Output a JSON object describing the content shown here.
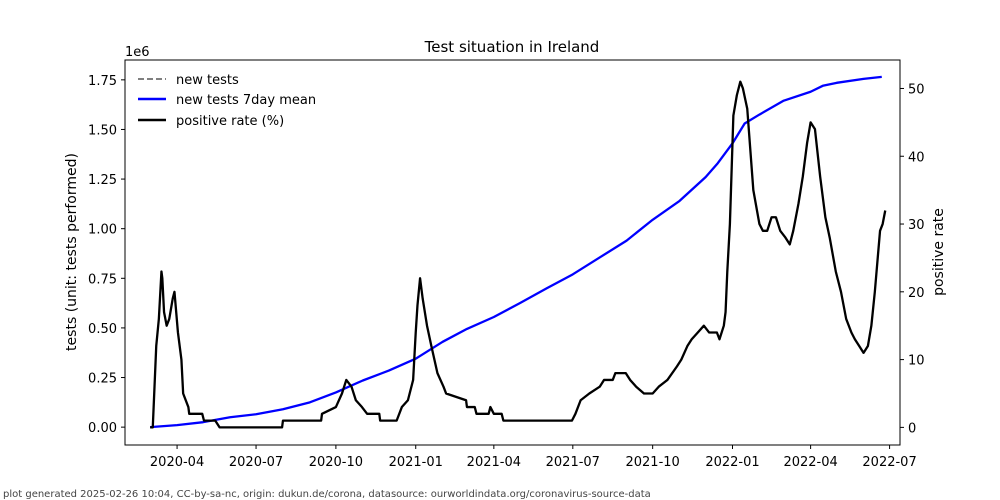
{
  "chart_data": {
    "type": "line",
    "title": "Test situation in Ireland",
    "y_offset_label": "1e6",
    "ylabel_left": "tests (unit: tests performed)",
    "ylabel_right": "positive rate",
    "x_range": [
      "2020-02-01",
      "2022-07-13"
    ],
    "x_ticks": [
      {
        "date": "2020-04-01",
        "label": "2020-04"
      },
      {
        "date": "2020-07-01",
        "label": "2020-07"
      },
      {
        "date": "2020-10-01",
        "label": "2020-10"
      },
      {
        "date": "2021-01-01",
        "label": "2021-01"
      },
      {
        "date": "2021-04-01",
        "label": "2021-04"
      },
      {
        "date": "2021-07-01",
        "label": "2021-07"
      },
      {
        "date": "2021-10-01",
        "label": "2021-10"
      },
      {
        "date": "2022-01-01",
        "label": "2022-01"
      },
      {
        "date": "2022-04-01",
        "label": "2022-04"
      },
      {
        "date": "2022-07-01",
        "label": "2022-07"
      }
    ],
    "y_left": {
      "range": [
        -0.09,
        1.85
      ],
      "ticks": [
        0,
        0.25,
        0.5,
        0.75,
        1.0,
        1.25,
        1.5,
        1.75
      ],
      "tick_labels": [
        "0.00",
        "0.25",
        "0.50",
        "0.75",
        "1.00",
        "1.25",
        "1.50",
        "1.75"
      ]
    },
    "y_right": {
      "range": [
        -2.6,
        54.2
      ],
      "ticks": [
        0,
        10,
        20,
        30,
        40,
        50
      ],
      "tick_labels": [
        "0",
        "10",
        "20",
        "30",
        "40",
        "50"
      ]
    },
    "legend": [
      {
        "label": "new tests",
        "color": "#808080",
        "style": "dashed"
      },
      {
        "label": "new tests 7day mean",
        "color": "#0000ff",
        "style": "solid"
      },
      {
        "label": "positive rate (%)",
        "color": "#000000",
        "style": "solid"
      }
    ],
    "series": [
      {
        "name": "new tests 7day mean",
        "axis": "left",
        "color": "#0000ff",
        "points": [
          [
            "2020-03-01",
            0.0
          ],
          [
            "2020-04-01",
            0.01
          ],
          [
            "2020-05-01",
            0.025
          ],
          [
            "2020-06-01",
            0.05
          ],
          [
            "2020-07-01",
            0.065
          ],
          [
            "2020-08-01",
            0.09
          ],
          [
            "2020-09-01",
            0.125
          ],
          [
            "2020-10-01",
            0.175
          ],
          [
            "2020-11-01",
            0.235
          ],
          [
            "2020-12-01",
            0.285
          ],
          [
            "2021-01-01",
            0.345
          ],
          [
            "2021-02-01",
            0.43
          ],
          [
            "2021-03-01",
            0.495
          ],
          [
            "2021-04-01",
            0.555
          ],
          [
            "2021-05-01",
            0.625
          ],
          [
            "2021-06-01",
            0.7
          ],
          [
            "2021-07-01",
            0.77
          ],
          [
            "2021-08-01",
            0.855
          ],
          [
            "2021-09-01",
            0.94
          ],
          [
            "2021-10-01",
            1.045
          ],
          [
            "2021-11-01",
            1.14
          ],
          [
            "2021-12-01",
            1.26
          ],
          [
            "2021-12-15",
            1.33
          ],
          [
            "2022-01-01",
            1.43
          ],
          [
            "2022-01-15",
            1.53
          ],
          [
            "2022-02-01",
            1.575
          ],
          [
            "2022-03-01",
            1.645
          ],
          [
            "2022-04-01",
            1.69
          ],
          [
            "2022-04-15",
            1.72
          ],
          [
            "2022-05-01",
            1.735
          ],
          [
            "2022-06-01",
            1.755
          ],
          [
            "2022-06-22",
            1.765
          ]
        ]
      },
      {
        "name": "positive rate (%)",
        "axis": "right",
        "color": "#000000",
        "points": [
          [
            "2020-03-01",
            0
          ],
          [
            "2020-03-04",
            0
          ],
          [
            "2020-03-06",
            6
          ],
          [
            "2020-03-08",
            12
          ],
          [
            "2020-03-11",
            16
          ],
          [
            "2020-03-14",
            23
          ],
          [
            "2020-03-15",
            22
          ],
          [
            "2020-03-17",
            17
          ],
          [
            "2020-03-20",
            15
          ],
          [
            "2020-03-23",
            16
          ],
          [
            "2020-03-27",
            19
          ],
          [
            "2020-03-29",
            20
          ],
          [
            "2020-04-02",
            14
          ],
          [
            "2020-04-06",
            10
          ],
          [
            "2020-04-08",
            5
          ],
          [
            "2020-04-14",
            3
          ],
          [
            "2020-04-15",
            2
          ],
          [
            "2020-04-30",
            2
          ],
          [
            "2020-05-02",
            1
          ],
          [
            "2020-05-15",
            1
          ],
          [
            "2020-05-20",
            0
          ],
          [
            "2020-07-31",
            0
          ],
          [
            "2020-08-01",
            1
          ],
          [
            "2020-09-14",
            1
          ],
          [
            "2020-09-15",
            2
          ],
          [
            "2020-10-01",
            3
          ],
          [
            "2020-10-08",
            5
          ],
          [
            "2020-10-13",
            7
          ],
          [
            "2020-10-19",
            6
          ],
          [
            "2020-10-24",
            4
          ],
          [
            "2020-10-31",
            3
          ],
          [
            "2020-11-06",
            2
          ],
          [
            "2020-11-20",
            2
          ],
          [
            "2020-11-21",
            1
          ],
          [
            "2020-12-10",
            1
          ],
          [
            "2020-12-16",
            3
          ],
          [
            "2020-12-23",
            4
          ],
          [
            "2020-12-29",
            7
          ],
          [
            "2021-01-01",
            14
          ],
          [
            "2021-01-03",
            18
          ],
          [
            "2021-01-06",
            22
          ],
          [
            "2021-01-09",
            19
          ],
          [
            "2021-01-14",
            15
          ],
          [
            "2021-01-19",
            12
          ],
          [
            "2021-01-26",
            8
          ],
          [
            "2021-02-02",
            6
          ],
          [
            "2021-02-05",
            5
          ],
          [
            "2021-02-28",
            4
          ],
          [
            "2021-03-01",
            3
          ],
          [
            "2021-03-10",
            3
          ],
          [
            "2021-03-12",
            2
          ],
          [
            "2021-03-26",
            2
          ],
          [
            "2021-03-28",
            3
          ],
          [
            "2021-04-01",
            2
          ],
          [
            "2021-04-10",
            2
          ],
          [
            "2021-04-12",
            1
          ],
          [
            "2021-06-30",
            1
          ],
          [
            "2021-07-04",
            2
          ],
          [
            "2021-07-10",
            4
          ],
          [
            "2021-07-20",
            5
          ],
          [
            "2021-08-01",
            6
          ],
          [
            "2021-08-06",
            7
          ],
          [
            "2021-08-16",
            7
          ],
          [
            "2021-08-19",
            8
          ],
          [
            "2021-08-31",
            8
          ],
          [
            "2021-09-05",
            7
          ],
          [
            "2021-09-12",
            6
          ],
          [
            "2021-09-21",
            5
          ],
          [
            "2021-10-01",
            5
          ],
          [
            "2021-10-08",
            6
          ],
          [
            "2021-10-18",
            7
          ],
          [
            "2021-10-29",
            9
          ],
          [
            "2021-11-03",
            10
          ],
          [
            "2021-11-10",
            12
          ],
          [
            "2021-11-15",
            13
          ],
          [
            "2021-11-22",
            14
          ],
          [
            "2021-11-29",
            15
          ],
          [
            "2021-12-05",
            14
          ],
          [
            "2021-12-14",
            14
          ],
          [
            "2021-12-17",
            13
          ],
          [
            "2021-12-22",
            15
          ],
          [
            "2021-12-24",
            17
          ],
          [
            "2021-12-26",
            23
          ],
          [
            "2021-12-29",
            30
          ],
          [
            "2022-01-02",
            46
          ],
          [
            "2022-01-06",
            49
          ],
          [
            "2022-01-10",
            51
          ],
          [
            "2022-01-13",
            50
          ],
          [
            "2022-01-18",
            47
          ],
          [
            "2022-01-25",
            35
          ],
          [
            "2022-02-01",
            30
          ],
          [
            "2022-02-05",
            29
          ],
          [
            "2022-02-10",
            29
          ],
          [
            "2022-02-15",
            31
          ],
          [
            "2022-02-20",
            31
          ],
          [
            "2022-02-25",
            29
          ],
          [
            "2022-03-03",
            28
          ],
          [
            "2022-03-08",
            27
          ],
          [
            "2022-03-12",
            29
          ],
          [
            "2022-03-18",
            33
          ],
          [
            "2022-03-23",
            37
          ],
          [
            "2022-03-28",
            42
          ],
          [
            "2022-04-01",
            45
          ],
          [
            "2022-04-06",
            44
          ],
          [
            "2022-04-12",
            37
          ],
          [
            "2022-04-18",
            31
          ],
          [
            "2022-04-23",
            28
          ],
          [
            "2022-04-30",
            23
          ],
          [
            "2022-05-06",
            20
          ],
          [
            "2022-05-12",
            16
          ],
          [
            "2022-05-18",
            14
          ],
          [
            "2022-05-22",
            13
          ],
          [
            "2022-05-27",
            12
          ],
          [
            "2022-06-01",
            11
          ],
          [
            "2022-06-06",
            12
          ],
          [
            "2022-06-10",
            15
          ],
          [
            "2022-06-14",
            20
          ],
          [
            "2022-06-18",
            26
          ],
          [
            "2022-06-20",
            29
          ],
          [
            "2022-06-23",
            30
          ],
          [
            "2022-06-26",
            32
          ]
        ]
      }
    ]
  },
  "footer": "plot generated 2025-02-26 10:04, CC-by-sa-nc, origin: dukun.de/corona, datasource: ourworldindata.org/coronavirus-source-data"
}
